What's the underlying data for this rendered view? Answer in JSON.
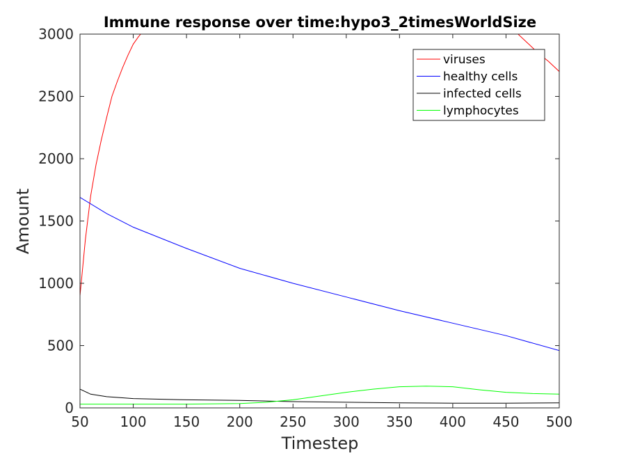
{
  "chart_data": {
    "type": "line",
    "title": "Immune response over time:hypo3_2timesWorldSize",
    "xlabel": "Timestep",
    "ylabel": "Amount",
    "xlim": [
      50,
      500
    ],
    "ylim": [
      0,
      3000
    ],
    "xticks": [
      50,
      100,
      150,
      200,
      250,
      300,
      350,
      400,
      450,
      500
    ],
    "yticks": [
      0,
      500,
      1000,
      1500,
      2000,
      2500,
      3000
    ],
    "grid": false,
    "legend_position": "top-right",
    "series": [
      {
        "name": "viruses",
        "color": "#ff0000",
        "x": [
          50,
          55,
          60,
          65,
          70,
          75,
          80,
          85,
          90,
          95,
          100,
          105,
          108,
          460,
          470,
          480,
          490,
          500
        ],
        "y": [
          900,
          1350,
          1700,
          1950,
          2150,
          2330,
          2500,
          2620,
          2730,
          2830,
          2920,
          2980,
          3010,
          3010,
          2930,
          2850,
          2780,
          2700
        ]
      },
      {
        "name": "healthy cells",
        "color": "#0000ff",
        "x": [
          50,
          75,
          100,
          150,
          200,
          250,
          300,
          350,
          400,
          450,
          500
        ],
        "y": [
          1690,
          1560,
          1450,
          1280,
          1120,
          1000,
          890,
          780,
          680,
          580,
          460
        ]
      },
      {
        "name": "infected cells",
        "color": "#000000",
        "x": [
          50,
          60,
          75,
          100,
          150,
          200,
          250,
          300,
          350,
          400,
          450,
          500
        ],
        "y": [
          150,
          110,
          90,
          75,
          65,
          60,
          50,
          45,
          40,
          38,
          38,
          40
        ]
      },
      {
        "name": "lymphocytes",
        "color": "#00ff00",
        "x": [
          50,
          100,
          150,
          200,
          225,
          250,
          275,
          300,
          325,
          350,
          375,
          400,
          425,
          450,
          475,
          500
        ],
        "y": [
          30,
          30,
          30,
          35,
          45,
          65,
          95,
          125,
          150,
          170,
          175,
          170,
          145,
          125,
          115,
          110
        ]
      }
    ]
  }
}
